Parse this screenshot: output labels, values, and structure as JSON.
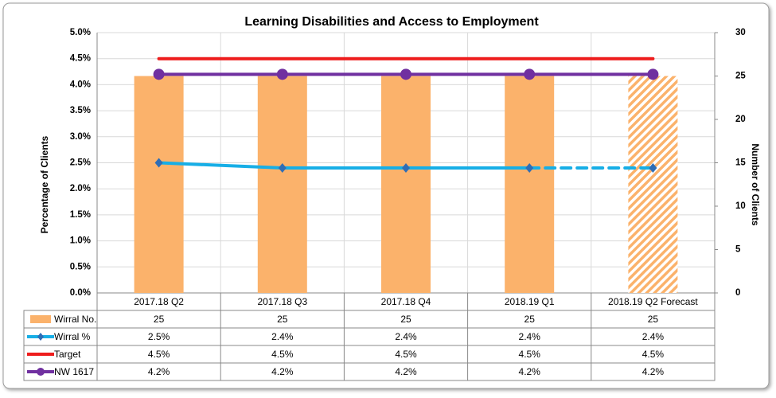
{
  "chart_data": {
    "type": "bar-line-combo",
    "title": "Learning Disabilities and Access to Employment",
    "y_label": "Percentage of Clients",
    "y2_label": "Number of Clients",
    "categories": [
      "2017.18 Q2",
      "2017.18 Q3",
      "2017.18 Q4",
      "2018.19 Q1",
      "2018.19 Q2 Forecast"
    ],
    "forecast_index": 4,
    "series": [
      {
        "name": "Wirral No.",
        "type": "bar",
        "axis": "y2",
        "color": "#fbb26b",
        "forecast_style": "hatched",
        "values": [
          25,
          25,
          25,
          25,
          25
        ]
      },
      {
        "name": "Wirral %",
        "type": "line",
        "marker": "diamond",
        "marker_color": "#2f6db5",
        "color": "#17aee6",
        "forecast_style": "dashed",
        "values": [
          2.5,
          2.4,
          2.4,
          2.4,
          2.4
        ],
        "value_labels": [
          "2.5%",
          "2.4%",
          "2.4%",
          "2.4%",
          "2.4%"
        ]
      },
      {
        "name": "Target",
        "type": "line",
        "color": "#ee1c1c",
        "values": [
          4.5,
          4.5,
          4.5,
          4.5,
          4.5
        ],
        "value_labels": [
          "4.5%",
          "4.5%",
          "4.5%",
          "4.5%",
          "4.5%"
        ]
      },
      {
        "name": "NW 1617",
        "type": "line",
        "marker": "circle",
        "color": "#7030a0",
        "values": [
          4.2,
          4.2,
          4.2,
          4.2,
          4.2
        ],
        "value_labels": [
          "4.2%",
          "4.2%",
          "4.2%",
          "4.2%",
          "4.2%"
        ]
      }
    ],
    "ylim": [
      0,
      5
    ],
    "yticks": [
      {
        "value": 0,
        "label": "0.0%"
      },
      {
        "value": 0.5,
        "label": "0.5%"
      },
      {
        "value": 1,
        "label": "1.0%"
      },
      {
        "value": 1.5,
        "label": "1.5%"
      },
      {
        "value": 2,
        "label": "2.0%"
      },
      {
        "value": 2.5,
        "label": "2.5%"
      },
      {
        "value": 3,
        "label": "3.0%"
      },
      {
        "value": 3.5,
        "label": "3.5%"
      },
      {
        "value": 4,
        "label": "4.0%"
      },
      {
        "value": 4.5,
        "label": "4.5%"
      },
      {
        "value": 5,
        "label": "5.0%"
      }
    ],
    "y2lim": [
      0,
      30
    ],
    "y2ticks": [
      0,
      5,
      10,
      15,
      20,
      25,
      30
    ],
    "grid": true
  }
}
